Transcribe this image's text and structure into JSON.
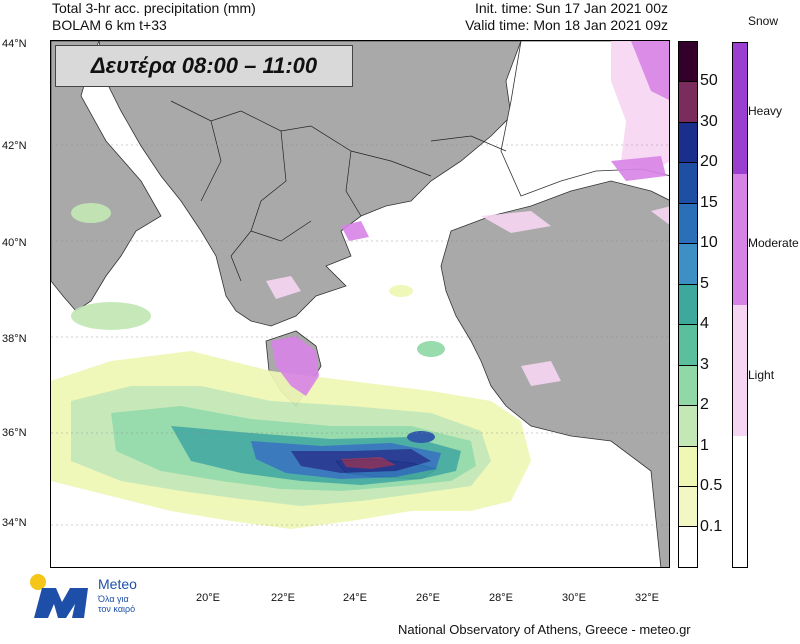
{
  "header": {
    "left_line1": "Total 3-hr acc. precipitation (mm)",
    "left_line2": "BOLAM 6 km t+33",
    "right_line1": "Init. time: Sun 17 Jan 2021 00z",
    "right_line2": "Valid time: Mon 18 Jan 2021 09z"
  },
  "period_label": "Δευτέρα 08:00 – 11:00",
  "latitudes": [
    "44°N",
    "42°N",
    "40°N",
    "38°N",
    "36°N",
    "34°N"
  ],
  "longitudes": [
    "20°E",
    "22°E",
    "24°E",
    "26°E",
    "28°E",
    "30°E",
    "32°E"
  ],
  "precip_scale": {
    "labels": [
      "50",
      "30",
      "20",
      "15",
      "10",
      "5",
      "4",
      "3",
      "2",
      "1",
      "0.5",
      "0.1"
    ],
    "colors": [
      "#33002b",
      "#7a2c5c",
      "#1a2f8c",
      "#1f4fa3",
      "#2a6fb8",
      "#3d8fc4",
      "#3ea89c",
      "#5bbf9e",
      "#90d8a6",
      "#c3e8b5",
      "#eef7b4",
      "#f2f7c4",
      "#ffffff"
    ]
  },
  "snow_scale": {
    "title": "Snow",
    "levels": [
      "Heavy",
      "Moderate",
      "Light"
    ],
    "colors": [
      "#9b3fd1",
      "#d783e6",
      "#f6d5f3",
      "#ffffff"
    ]
  },
  "footer": "National Observatory of Athens, Greece - meteo.gr",
  "logo": {
    "name": "Meteo",
    "tagline_1": "Όλα για",
    "tagline_2": "τον καιρό"
  }
}
